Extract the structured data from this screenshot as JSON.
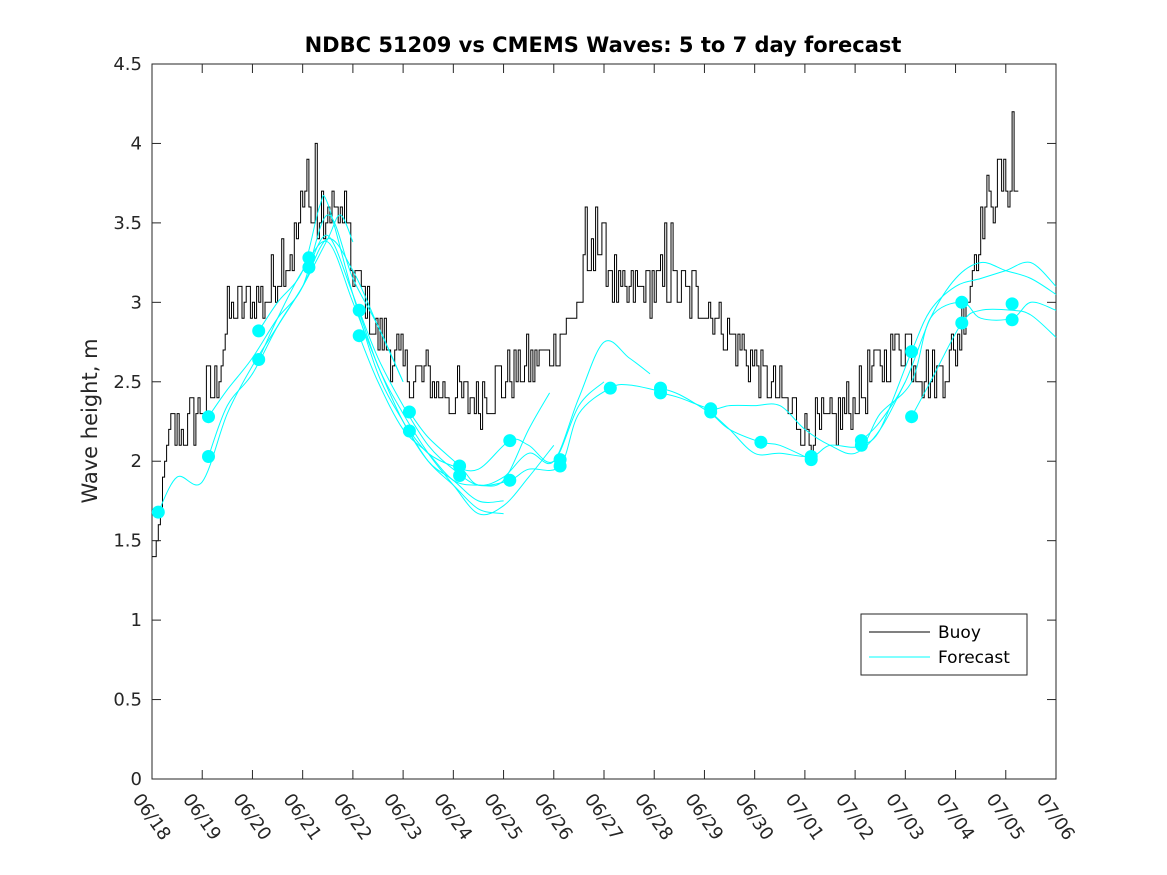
{
  "chart_data": {
    "type": "line",
    "title": "NDBC 51209 vs CMEMS Waves: 5 to 7 day forecast",
    "xlabel": "",
    "ylabel": "Wave height, m",
    "xlim": [
      "06/18",
      "07/06"
    ],
    "ylim": [
      0,
      4.5
    ],
    "x_tick_labels": [
      "06/18",
      "06/19",
      "06/20",
      "06/21",
      "06/22",
      "06/23",
      "06/24",
      "06/25",
      "06/26",
      "06/27",
      "06/28",
      "06/29",
      "06/30",
      "07/01",
      "07/02",
      "07/03",
      "07/04",
      "07/05",
      "07/06"
    ],
    "y_ticks": [
      0,
      0.5,
      1,
      1.5,
      2,
      2.5,
      3,
      3.5,
      4,
      4.5
    ],
    "y_tick_labels": [
      "0",
      "0.5",
      "1",
      "1.5",
      "2",
      "2.5",
      "3",
      "3.5",
      "4",
      "4.5"
    ],
    "grid": false,
    "legend": {
      "position": "bottom-right",
      "entries": [
        "Buoy",
        "Forecast"
      ]
    },
    "colors": {
      "buoy": "#000000",
      "forecast": "#00ffff"
    },
    "buoy": {
      "name": "Buoy",
      "anchors": [
        [
          "06/18 00:00",
          1.4
        ],
        [
          "06/18 03:00",
          1.5
        ],
        [
          "06/18 06:00",
          2.0
        ],
        [
          "06/18 10:00",
          2.2
        ],
        [
          "06/18 16:00",
          2.2
        ],
        [
          "06/18 22:00",
          2.3
        ],
        [
          "06/19 06:00",
          2.5
        ],
        [
          "06/19 12:00",
          2.9
        ],
        [
          "06/19 18:00",
          3.0
        ],
        [
          "06/20 00:00",
          3.0
        ],
        [
          "06/20 06:00",
          3.0
        ],
        [
          "06/20 12:00",
          3.2
        ],
        [
          "06/20 18:00",
          3.3
        ],
        [
          "06/21 00:00",
          3.6
        ],
        [
          "06/21 06:00",
          3.5
        ],
        [
          "06/21 12:00",
          3.5
        ],
        [
          "06/21 18:00",
          3.5
        ],
        [
          "06/22 00:00",
          3.2
        ],
        [
          "06/22 06:00",
          3.0
        ],
        [
          "06/22 12:00",
          2.8
        ],
        [
          "06/22 18:00",
          2.7
        ],
        [
          "06/23 00:00",
          2.6
        ],
        [
          "06/23 06:00",
          2.5
        ],
        [
          "06/23 12:00",
          2.5
        ],
        [
          "06/24 00:00",
          2.4
        ],
        [
          "06/24 12:00",
          2.4
        ],
        [
          "06/25 00:00",
          2.5
        ],
        [
          "06/25 12:00",
          2.6
        ],
        [
          "06/26 00:00",
          2.7
        ],
        [
          "06/26 12:00",
          3.0
        ],
        [
          "06/26 18:00",
          3.3
        ],
        [
          "06/27 00:00",
          3.3
        ],
        [
          "06/27 06:00",
          3.1
        ],
        [
          "06/27 12:00",
          3.0
        ],
        [
          "06/27 18:00",
          3.1
        ],
        [
          "06/28 00:00",
          3.1
        ],
        [
          "06/28 12:00",
          3.1
        ],
        [
          "06/29 00:00",
          3.0
        ],
        [
          "06/29 12:00",
          2.8
        ],
        [
          "06/30 00:00",
          2.6
        ],
        [
          "06/30 12:00",
          2.4
        ],
        [
          "07/01 00:00",
          2.2
        ],
        [
          "07/01 12:00",
          2.2
        ],
        [
          "07/02 00:00",
          2.4
        ],
        [
          "07/02 12:00",
          2.6
        ],
        [
          "07/03 00:00",
          2.8
        ],
        [
          "07/03 06:00",
          2.6
        ],
        [
          "07/03 12:00",
          2.5
        ],
        [
          "07/03 18:00",
          2.6
        ],
        [
          "07/04 00:00",
          2.7
        ],
        [
          "07/04 06:00",
          3.1
        ],
        [
          "07/04 12:00",
          3.5
        ],
        [
          "07/04 18:00",
          3.7
        ],
        [
          "07/05 00:00",
          3.8
        ],
        [
          "07/05 06:00",
          3.7
        ]
      ],
      "spikes": [
        [
          "06/20 14:00",
          3.4
        ],
        [
          "06/21 02:00",
          3.9
        ],
        [
          "06/21 06:00",
          4.0
        ],
        [
          "06/21 14:00",
          3.7
        ],
        [
          "06/21 20:00",
          3.7
        ],
        [
          "06/26 15:00",
          3.6
        ],
        [
          "06/26 20:00",
          3.6
        ],
        [
          "06/28 05:00",
          3.5
        ],
        [
          "06/28 08:00",
          3.45
        ],
        [
          "07/05 03:00",
          4.2
        ]
      ]
    },
    "forecast_runs": [
      {
        "points": [
          [
            "06/18 03:00",
            1.68
          ],
          [
            "06/18 12:00",
            1.9
          ],
          [
            "06/19 00:00",
            1.87
          ],
          [
            "06/19 12:00",
            2.3
          ],
          [
            "06/20 00:00",
            2.6
          ],
          [
            "06/20 12:00",
            2.85
          ],
          [
            "06/21 00:00",
            3.1
          ],
          [
            "06/21 12:00",
            3.4
          ],
          [
            "06/21 18:00",
            3.55
          ],
          [
            "06/22 00:00",
            3.38
          ]
        ],
        "markers": [
          [
            "06/18 03:00",
            1.68
          ]
        ]
      },
      {
        "points": [
          [
            "06/19 03:00",
            2.03
          ],
          [
            "06/19 12:00",
            2.35
          ],
          [
            "06/20 00:00",
            2.55
          ],
          [
            "06/20 12:00",
            2.85
          ],
          [
            "06/21 00:00",
            3.1
          ],
          [
            "06/21 12:00",
            3.4
          ],
          [
            "06/22 00:00",
            3.2
          ],
          [
            "06/22 12:00",
            2.85
          ],
          [
            "06/23 00:00",
            2.5
          ]
        ],
        "markers": [
          [
            "06/19 03:00",
            2.03
          ]
        ]
      },
      {
        "points": [
          [
            "06/19 03:00",
            2.28
          ],
          [
            "06/19 12:00",
            2.45
          ],
          [
            "06/20 00:00",
            2.65
          ],
          [
            "06/20 12:00",
            2.9
          ],
          [
            "06/21 00:00",
            3.1
          ],
          [
            "06/21 12:00",
            3.55
          ],
          [
            "06/22 00:00",
            3.15
          ],
          [
            "06/22 12:00",
            2.85
          ],
          [
            "06/23 00:00",
            2.5
          ]
        ],
        "markers": [
          [
            "06/19 03:00",
            2.28
          ]
        ]
      },
      {
        "points": [
          [
            "06/20 03:00",
            2.64
          ],
          [
            "06/20 12:00",
            2.9
          ],
          [
            "06/21 00:00",
            3.2
          ],
          [
            "06/21 12:00",
            3.38
          ],
          [
            "06/22 00:00",
            3.0
          ],
          [
            "06/22 12:00",
            2.6
          ],
          [
            "06/23 00:00",
            2.25
          ],
          [
            "06/23 12:00",
            2.0
          ],
          [
            "06/24 00:00",
            1.88
          ],
          [
            "06/24 12:00",
            1.75
          ],
          [
            "06/25 00:00",
            1.75
          ]
        ],
        "markers": [
          [
            "06/20 03:00",
            2.64
          ]
        ]
      },
      {
        "points": [
          [
            "06/20 03:00",
            2.82
          ],
          [
            "06/20 12:00",
            3.0
          ],
          [
            "06/21 00:00",
            3.2
          ],
          [
            "06/21 08:00",
            3.6
          ],
          [
            "06/21 12:00",
            3.62
          ],
          [
            "06/22 00:00",
            3.05
          ],
          [
            "06/22 12:00",
            2.55
          ],
          [
            "06/23 00:00",
            2.25
          ],
          [
            "06/23 12:00",
            2.0
          ],
          [
            "06/24 00:00",
            1.85
          ],
          [
            "06/24 12:00",
            1.7
          ],
          [
            "06/25 00:00",
            1.67
          ]
        ],
        "markers": [
          [
            "06/20 03:00",
            2.82
          ]
        ]
      },
      {
        "points": [
          [
            "06/21 03:00",
            3.22
          ],
          [
            "06/21 12:00",
            3.42
          ],
          [
            "06/22 00:00",
            3.05
          ],
          [
            "06/22 12:00",
            2.6
          ],
          [
            "06/23 00:00",
            2.3
          ],
          [
            "06/23 12:00",
            2.05
          ],
          [
            "06/24 00:00",
            1.85
          ],
          [
            "06/24 12:00",
            1.67
          ],
          [
            "06/25 00:00",
            1.72
          ],
          [
            "06/25 12:00",
            1.9
          ],
          [
            "06/26 00:00",
            2.1
          ]
        ],
        "markers": [
          [
            "06/21 03:00",
            3.22
          ],
          [
            "06/21 03:00",
            3.28
          ]
        ]
      },
      {
        "points": [
          [
            "06/22 03:00",
            2.79
          ],
          [
            "06/22 12:00",
            2.5
          ],
          [
            "06/23 00:00",
            2.2
          ],
          [
            "06/23 12:00",
            2.05
          ],
          [
            "06/24 00:00",
            1.88
          ],
          [
            "06/24 12:00",
            1.85
          ],
          [
            "06/25 00:00",
            1.88
          ],
          [
            "06/25 12:00",
            2.2
          ],
          [
            "06/25 22:00",
            2.43
          ]
        ],
        "markers": [
          [
            "06/22 03:00",
            2.79
          ]
        ]
      },
      {
        "points": [
          [
            "06/22 03:00",
            2.95
          ],
          [
            "06/22 12:00",
            2.65
          ],
          [
            "06/23 00:00",
            2.35
          ],
          [
            "06/23 12:00",
            2.1
          ],
          [
            "06/24 00:00",
            1.95
          ],
          [
            "06/24 12:00",
            1.85
          ],
          [
            "06/25 00:00",
            1.9
          ],
          [
            "06/25 12:00",
            2.05
          ],
          [
            "06/26 00:00",
            2.0
          ],
          [
            "06/26 12:00",
            2.4
          ],
          [
            "06/27 00:00",
            2.75
          ],
          [
            "06/27 12:00",
            2.65
          ],
          [
            "06/27 22:00",
            2.55
          ]
        ],
        "markers": [
          [
            "06/22 03:00",
            2.95
          ]
        ]
      },
      {
        "points": [
          [
            "06/23 03:00",
            2.19
          ],
          [
            "06/23 12:00",
            2.05
          ],
          [
            "06/24 00:00",
            1.97
          ],
          [
            "06/24 12:00",
            1.95
          ],
          [
            "06/25 03:00",
            2.13
          ],
          [
            "06/25 12:00",
            2.1
          ],
          [
            "06/26 00:00",
            2.0
          ],
          [
            "06/26 12:00",
            2.35
          ],
          [
            "06/27 00:00",
            2.5
          ]
        ],
        "markers": [
          [
            "06/23 03:00",
            2.19
          ]
        ]
      },
      {
        "points": [
          [
            "06/23 03:00",
            2.31
          ],
          [
            "06/23 12:00",
            2.15
          ],
          [
            "06/24 03:00",
            1.97
          ],
          [
            "06/24 12:00",
            1.85
          ],
          [
            "06/25 03:00",
            1.88
          ],
          [
            "06/25 12:00",
            1.95
          ],
          [
            "06/26 03:00",
            1.97
          ],
          [
            "06/26 12:00",
            2.3
          ],
          [
            "06/27 03:00",
            2.46
          ],
          [
            "06/27 12:00",
            2.48
          ],
          [
            "06/28 03:00",
            2.44
          ]
        ],
        "markers": [
          [
            "06/23 03:00",
            2.31
          ],
          [
            "06/24 03:00",
            1.91
          ],
          [
            "06/24 03:00",
            1.97
          ],
          [
            "06/25 03:00",
            1.88
          ],
          [
            "06/25 03:00",
            2.13
          ],
          [
            "06/26 03:00",
            1.97
          ],
          [
            "06/26 03:00",
            2.01
          ],
          [
            "06/27 03:00",
            2.46
          ]
        ]
      },
      {
        "points": [
          [
            "06/28 03:00",
            2.46
          ],
          [
            "06/28 12:00",
            2.42
          ],
          [
            "06/29 03:00",
            2.3
          ],
          [
            "06/29 12:00",
            2.2
          ],
          [
            "06/30 03:00",
            2.12
          ],
          [
            "06/30 12:00",
            2.1
          ],
          [
            "07/01 03:00",
            2.01
          ]
        ],
        "markers": [
          [
            "06/28 03:00",
            2.43
          ],
          [
            "06/28 03:00",
            2.46
          ],
          [
            "06/29 03:00",
            2.31
          ],
          [
            "06/29 03:00",
            2.33
          ],
          [
            "06/30 03:00",
            2.12
          ],
          [
            "07/01 03:00",
            2.01
          ],
          [
            "07/01 03:00",
            2.03
          ]
        ]
      },
      {
        "points": [
          [
            "06/28 03:00",
            2.43
          ],
          [
            "06/28 12:00",
            2.4
          ],
          [
            "06/29 03:00",
            2.33
          ],
          [
            "06/29 12:00",
            2.35
          ],
          [
            "06/30 00:00",
            2.35
          ],
          [
            "06/30 12:00",
            2.35
          ],
          [
            "07/01 00:00",
            2.2
          ],
          [
            "07/01 12:00",
            2.1
          ],
          [
            "07/02 00:00",
            2.05
          ],
          [
            "07/02 12:00",
            2.2
          ],
          [
            "07/03 00:00",
            2.5
          ]
        ],
        "markers": []
      },
      {
        "points": [
          [
            "06/29 03:00",
            2.31
          ],
          [
            "06/29 12:00",
            2.2
          ],
          [
            "06/30 00:00",
            2.05
          ],
          [
            "06/30 12:00",
            2.05
          ],
          [
            "07/01 03:00",
            2.03
          ],
          [
            "07/01 12:00",
            2.1
          ],
          [
            "07/02 03:00",
            2.1
          ],
          [
            "07/02 12:00",
            2.3
          ],
          [
            "07/03 03:00",
            2.5
          ],
          [
            "07/03 12:00",
            2.9
          ],
          [
            "07/04 03:00",
            3.0
          ],
          [
            "07/04 12:00",
            2.9
          ],
          [
            "07/05 03:00",
            2.9
          ],
          [
            "07/05 12:00",
            3.0
          ],
          [
            "07/06 00:00",
            2.95
          ]
        ],
        "markers": [
          [
            "07/02 03:00",
            2.1
          ],
          [
            "07/02 03:00",
            2.13
          ],
          [
            "07/03 03:00",
            2.28
          ],
          [
            "07/03 03:00",
            2.69
          ],
          [
            "07/04 03:00",
            2.87
          ],
          [
            "07/04 03:00",
            3.0
          ],
          [
            "07/05 03:00",
            2.89
          ],
          [
            "07/05 03:00",
            2.99
          ]
        ]
      },
      {
        "points": [
          [
            "07/02 03:00",
            2.13
          ],
          [
            "07/02 12:00",
            2.25
          ],
          [
            "07/03 00:00",
            2.5
          ],
          [
            "07/03 12:00",
            2.9
          ],
          [
            "07/04 00:00",
            3.15
          ],
          [
            "07/04 12:00",
            3.25
          ],
          [
            "07/05 00:00",
            3.2
          ],
          [
            "07/05 12:00",
            3.15
          ],
          [
            "07/06 00:00",
            3.05
          ]
        ],
        "markers": []
      },
      {
        "points": [
          [
            "07/02 03:00",
            2.1
          ],
          [
            "07/02 12:00",
            2.2
          ],
          [
            "07/03 03:00",
            2.69
          ],
          [
            "07/03 12:00",
            2.95
          ],
          [
            "07/04 00:00",
            3.1
          ],
          [
            "07/04 12:00",
            3.15
          ],
          [
            "07/05 00:00",
            3.2
          ],
          [
            "07/05 12:00",
            3.25
          ],
          [
            "07/06 00:00",
            3.1
          ]
        ],
        "markers": []
      },
      {
        "points": [
          [
            "07/03 03:00",
            2.28
          ],
          [
            "07/03 12:00",
            2.5
          ],
          [
            "07/04 03:00",
            2.87
          ],
          [
            "07/04 12:00",
            2.95
          ],
          [
            "07/05 03:00",
            2.95
          ],
          [
            "07/05 12:00",
            2.92
          ],
          [
            "07/06 00:00",
            2.78
          ]
        ],
        "markers": []
      }
    ]
  }
}
